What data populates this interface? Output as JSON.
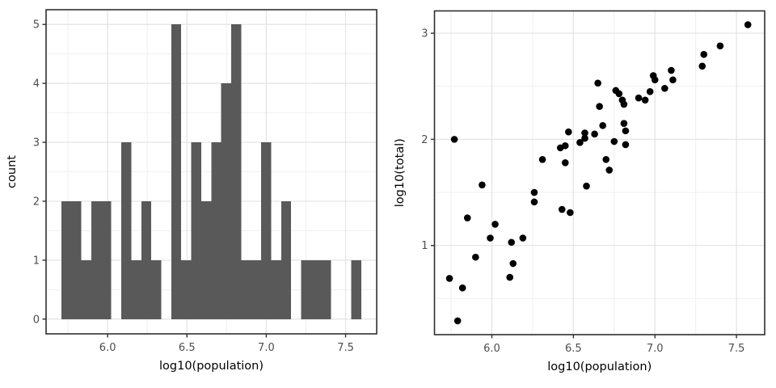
{
  "figure": {
    "background": "#ffffff",
    "description": "Two ggplot-style panels: histogram of log10(population) and scatter of log10(total) vs log10(population)"
  },
  "theme": {
    "panel_background": "#ffffff",
    "panel_border": "#2f2f2f",
    "grid_major": "#e3e3e3",
    "grid_minor": "#f0f0f0",
    "tick_color": "#2f2f2f",
    "tick_label_color": "#4d4d4d",
    "axis_title_color": "#000000",
    "bar_fill": "#595959",
    "point_fill": "#000000"
  },
  "chart_data": [
    {
      "id": "population-histogram",
      "type": "bar",
      "title": "",
      "xlabel": "log10(population)",
      "ylabel": "count",
      "grid": true,
      "legend": "none",
      "bins": {
        "start": 5.708,
        "width": 0.063
      },
      "counts": [
        2,
        2,
        1,
        2,
        2,
        0,
        3,
        1,
        2,
        1,
        0,
        5,
        1,
        3,
        2,
        3,
        4,
        5,
        1,
        1,
        3,
        1,
        2,
        0,
        1,
        1,
        1,
        0,
        0,
        1
      ],
      "x_tick_labels": [
        "6.0",
        "6.5",
        "7.0",
        "7.5"
      ],
      "x_tick_values": [
        6.0,
        6.5,
        7.0,
        7.5
      ],
      "x_minor_values": [
        5.75,
        6.25,
        6.75,
        7.25
      ],
      "y_tick_labels": [
        "0",
        "1",
        "2",
        "3",
        "4",
        "5"
      ],
      "y_tick_values": [
        0,
        1,
        2,
        3,
        4,
        5
      ],
      "y_minor_values": [
        0.5,
        1.5,
        2.5,
        3.5,
        4.5
      ],
      "xlim": [
        5.612,
        7.696
      ],
      "ylim": [
        -0.25,
        5.25
      ]
    },
    {
      "id": "total-vs-population-scatter",
      "type": "scatter",
      "title": "",
      "xlabel": "log10(population)",
      "ylabel": "log10(total)",
      "grid": true,
      "legend": "none",
      "points": [
        [
          5.74,
          0.69
        ],
        [
          5.77,
          2.0
        ],
        [
          5.79,
          0.29
        ],
        [
          5.82,
          0.6
        ],
        [
          5.85,
          1.26
        ],
        [
          5.9,
          0.89
        ],
        [
          5.94,
          1.57
        ],
        [
          5.99,
          1.07
        ],
        [
          6.02,
          1.2
        ],
        [
          6.11,
          0.7
        ],
        [
          6.12,
          1.03
        ],
        [
          6.13,
          0.83
        ],
        [
          6.19,
          1.07
        ],
        [
          6.26,
          1.5
        ],
        [
          6.26,
          1.41
        ],
        [
          6.31,
          1.81
        ],
        [
          6.42,
          1.92
        ],
        [
          6.43,
          1.34
        ],
        [
          6.45,
          1.94
        ],
        [
          6.45,
          1.78
        ],
        [
          6.47,
          2.07
        ],
        [
          6.48,
          1.31
        ],
        [
          6.54,
          1.97
        ],
        [
          6.57,
          2.06
        ],
        [
          6.57,
          2.01
        ],
        [
          6.58,
          1.56
        ],
        [
          6.63,
          2.05
        ],
        [
          6.65,
          2.53
        ],
        [
          6.66,
          2.31
        ],
        [
          6.68,
          2.13
        ],
        [
          6.7,
          1.81
        ],
        [
          6.72,
          1.71
        ],
        [
          6.75,
          1.98
        ],
        [
          6.76,
          2.46
        ],
        [
          6.78,
          2.43
        ],
        [
          6.8,
          2.37
        ],
        [
          6.81,
          2.33
        ],
        [
          6.81,
          2.15
        ],
        [
          6.82,
          2.08
        ],
        [
          6.82,
          1.95
        ],
        [
          6.9,
          2.39
        ],
        [
          6.94,
          2.37
        ],
        [
          6.97,
          2.45
        ],
        [
          6.99,
          2.6
        ],
        [
          7.0,
          2.56
        ],
        [
          7.06,
          2.48
        ],
        [
          7.1,
          2.65
        ],
        [
          7.11,
          2.56
        ],
        [
          7.29,
          2.69
        ],
        [
          7.3,
          2.8
        ],
        [
          7.4,
          2.88
        ],
        [
          7.57,
          3.08
        ]
      ],
      "point_radius": 4.3,
      "x_tick_labels": [
        "6.0",
        "6.5",
        "7.0",
        "7.5"
      ],
      "x_tick_values": [
        6.0,
        6.5,
        7.0,
        7.5
      ],
      "x_minor_values": [
        5.75,
        6.25,
        6.75,
        7.25
      ],
      "y_tick_labels": [
        "1",
        "2",
        "3"
      ],
      "y_tick_values": [
        1,
        2,
        3
      ],
      "y_minor_values": [
        0.5,
        1.5,
        2.5
      ],
      "xlim": [
        5.648,
        7.673
      ],
      "ylim": [
        0.16,
        3.21
      ]
    }
  ]
}
